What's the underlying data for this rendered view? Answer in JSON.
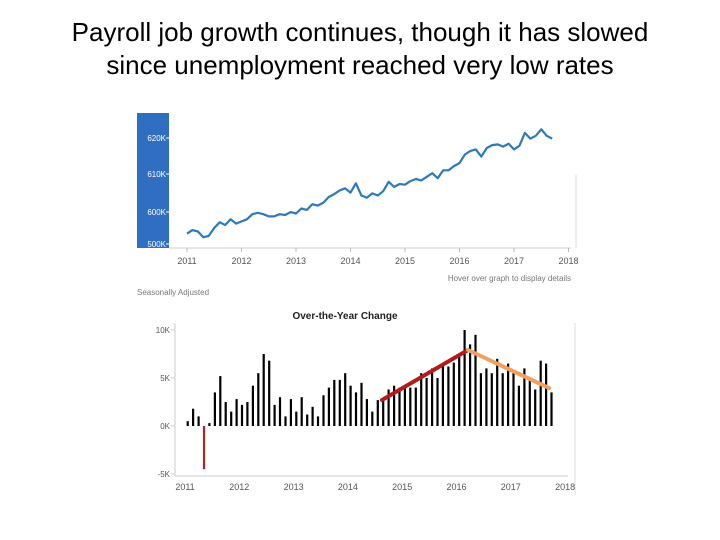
{
  "title_lines": [
    "Payroll job growth continues, though it has slowed",
    "since unemployment reached very low rates"
  ],
  "colors": {
    "level_line": "#2e7ab8",
    "level_axis_band": "#2f6ec1",
    "bars": "#000000",
    "negative_bar": "#b32424",
    "trend_up": "#b01c1c",
    "trend_down": "#f0a060"
  },
  "chart_data": [
    {
      "type": "line",
      "subtitle": "Hover over graph to display details",
      "note": "Seasonally Adjusted",
      "x_ticks": [
        "2011",
        "2012",
        "2013",
        "2014",
        "2015",
        "2016",
        "2017",
        "2018"
      ],
      "y_ticks": [
        "500K",
        "600K",
        "610K",
        "620K"
      ],
      "grid": false,
      "series": [
        {
          "x": [
            2011.0,
            2011.1,
            2011.2,
            2011.3,
            2011.4,
            2011.5,
            2011.6,
            2011.7,
            2011.8,
            2011.9,
            2012.0,
            2012.1,
            2012.2,
            2012.3,
            2012.4,
            2012.5,
            2012.6,
            2012.7,
            2012.8,
            2012.9,
            2013.0,
            2013.1,
            2013.2,
            2013.3,
            2013.4,
            2013.5,
            2013.6,
            2013.7,
            2013.8,
            2013.9,
            2014.0,
            2014.1,
            2014.2,
            2014.3,
            2014.4,
            2014.5,
            2014.6,
            2014.7,
            2014.8,
            2014.9,
            2015.0,
            2015.1,
            2015.2,
            2015.3,
            2015.4,
            2015.5,
            2015.6,
            2015.7,
            2015.8,
            2015.9,
            2016.0,
            2016.1,
            2016.2,
            2016.3,
            2016.4,
            2016.5,
            2016.6,
            2016.7,
            2016.8,
            2016.9,
            2017.0,
            2017.1,
            2017.2,
            2017.3,
            2017.4,
            2017.5,
            2017.6,
            2017.7
          ],
          "y": [
            0.6,
            1.1,
            0.9,
            0.1,
            0.3,
            1.4,
            2.2,
            1.8,
            2.6,
            2.0,
            2.3,
            2.6,
            3.3,
            3.5,
            3.3,
            3.0,
            3.0,
            3.3,
            3.2,
            3.6,
            3.4,
            4.1,
            3.9,
            4.7,
            4.5,
            4.9,
            5.7,
            6.1,
            6.6,
            6.9,
            6.3,
            7.6,
            5.9,
            5.6,
            6.2,
            5.9,
            6.5,
            7.8,
            7.1,
            7.5,
            7.4,
            7.9,
            8.2,
            8.0,
            8.5,
            9.0,
            8.3,
            9.4,
            9.4,
            10.0,
            10.4,
            11.6,
            12.1,
            12.3,
            11.3,
            12.5,
            12.9,
            13.0,
            12.7,
            13.1,
            12.3,
            12.8,
            14.6,
            13.8,
            14.2,
            15.1,
            14.2,
            13.8
          ]
        }
      ]
    },
    {
      "type": "bar",
      "title": "Over-the-Year Change",
      "x_ticks": [
        "2011",
        "2012",
        "2013",
        "2014",
        "2015",
        "2016",
        "2017",
        "2018"
      ],
      "y_ticks": [
        "10K",
        "5K",
        "0K",
        "-5K"
      ],
      "ylim": [
        -5,
        10
      ],
      "grid": false,
      "x": [
        2011.05,
        2011.15,
        2011.25,
        2011.35,
        2011.45,
        2011.55,
        2011.65,
        2011.75,
        2011.85,
        2011.95,
        2012.05,
        2012.15,
        2012.25,
        2012.35,
        2012.45,
        2012.55,
        2012.65,
        2012.75,
        2012.85,
        2012.95,
        2013.05,
        2013.15,
        2013.25,
        2013.35,
        2013.45,
        2013.55,
        2013.65,
        2013.75,
        2013.85,
        2013.95,
        2014.05,
        2014.15,
        2014.25,
        2014.35,
        2014.45,
        2014.55,
        2014.65,
        2014.75,
        2014.85,
        2014.95,
        2015.05,
        2015.15,
        2015.25,
        2015.35,
        2015.45,
        2015.55,
        2015.65,
        2015.75,
        2015.85,
        2015.95,
        2016.05,
        2016.15,
        2016.25,
        2016.35,
        2016.45,
        2016.55,
        2016.65,
        2016.75,
        2016.85,
        2016.95,
        2017.05,
        2017.15,
        2017.25,
        2017.35,
        2017.45,
        2017.55,
        2017.65,
        2017.75
      ],
      "values": [
        0.5,
        1.8,
        1.0,
        -4.5,
        0.3,
        3.5,
        5.2,
        2.5,
        1.5,
        2.8,
        2.2,
        2.5,
        4.2,
        5.5,
        7.5,
        6.8,
        2.2,
        3.0,
        1.0,
        2.8,
        1.5,
        3.0,
        1.2,
        2.0,
        1.0,
        3.2,
        4.0,
        4.8,
        4.8,
        5.5,
        4.2,
        3.5,
        4.5,
        2.8,
        1.5,
        2.7,
        2.7,
        3.8,
        4.2,
        4.0,
        4.2,
        4.0,
        4.0,
        5.5,
        5.0,
        6.0,
        5.0,
        6.4,
        6.2,
        6.6,
        7.2,
        10.0,
        8.5,
        9.5,
        5.5,
        6.0,
        5.5,
        7.0,
        5.5,
        6.5,
        5.5,
        4.2,
        6.0,
        5.0,
        3.8,
        6.8,
        6.5,
        3.5
      ]
    }
  ]
}
